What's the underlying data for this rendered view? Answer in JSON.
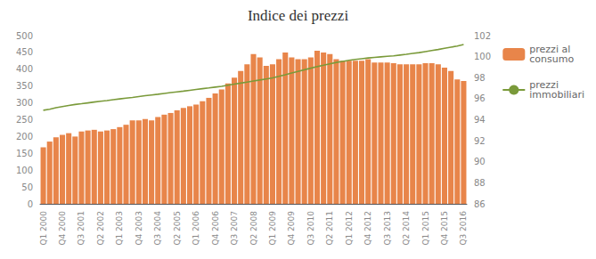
{
  "chart_data": {
    "type": "bar",
    "title": "Indice dei prezzi",
    "categories": [
      "Q1 2000",
      null,
      null,
      "Q4 2000",
      null,
      null,
      "Q3 2001",
      null,
      null,
      "Q2 2002",
      null,
      null,
      "Q1 2003",
      null,
      null,
      "Q4 2003",
      null,
      null,
      "Q3 2004",
      null,
      null,
      "Q2 2005",
      null,
      null,
      "Q1 2006",
      null,
      null,
      "Q4 2006",
      null,
      null,
      "Q3 2007",
      null,
      null,
      "Q2 2008",
      null,
      null,
      "Q1 2009",
      null,
      null,
      "Q4 2009",
      null,
      null,
      "Q3 2010",
      null,
      null,
      "Q2 2011",
      null,
      null,
      "Q1 2012",
      null,
      null,
      "Q4 2012",
      null,
      null,
      "Q3 2013",
      null,
      null,
      "Q2 2014",
      null,
      null,
      "Q1 2015",
      null,
      null,
      "Q4 2015",
      null,
      null,
      "Q3 2016"
    ],
    "series": [
      {
        "name": "prezzi al\nconsumo",
        "type": "bar",
        "color": "#E8854A",
        "values": [
          168,
          185,
          198,
          205,
          210,
          200,
          215,
          218,
          220,
          215,
          218,
          222,
          228,
          235,
          248,
          248,
          252,
          248,
          258,
          265,
          270,
          278,
          285,
          290,
          295,
          305,
          315,
          328,
          340,
          358,
          375,
          395,
          415,
          445,
          435,
          410,
          415,
          430,
          450,
          435,
          430,
          430,
          435,
          455,
          450,
          445,
          430,
          425,
          425,
          425,
          425,
          430,
          420,
          420,
          420,
          418,
          415,
          415,
          415,
          415,
          418,
          418,
          415,
          405,
          395,
          370,
          365
        ]
      },
      {
        "name": "prezzi\nimmobiliari",
        "type": "line",
        "axis": "y2",
        "color": "#7A9A3A",
        "values": [
          94.9,
          95.0,
          95.15,
          95.25,
          95.35,
          95.45,
          95.52,
          95.6,
          95.68,
          95.75,
          95.82,
          95.9,
          95.98,
          96.05,
          96.12,
          96.2,
          96.28,
          96.35,
          96.42,
          96.5,
          96.58,
          96.65,
          96.72,
          96.8,
          96.88,
          96.95,
          97.02,
          97.1,
          97.18,
          97.28,
          97.38,
          97.48,
          97.58,
          97.68,
          97.78,
          97.88,
          97.98,
          98.12,
          98.28,
          98.45,
          98.6,
          98.75,
          98.9,
          99.05,
          99.18,
          99.32,
          99.45,
          99.55,
          99.65,
          99.73,
          99.8,
          99.87,
          99.93,
          99.98,
          100.03,
          100.08,
          100.15,
          100.22,
          100.3,
          100.38,
          100.48,
          100.58,
          100.68,
          100.8,
          100.9,
          101.0,
          101.15
        ]
      }
    ],
    "ylim": [
      0,
      500
    ],
    "yticks": [
      0,
      50,
      100,
      150,
      200,
      250,
      300,
      350,
      400,
      450,
      500
    ],
    "y2lim": [
      86,
      102
    ],
    "y2ticks": [
      86,
      88,
      90,
      92,
      94,
      96,
      98,
      100,
      102
    ],
    "grid": false,
    "legend": "right"
  }
}
